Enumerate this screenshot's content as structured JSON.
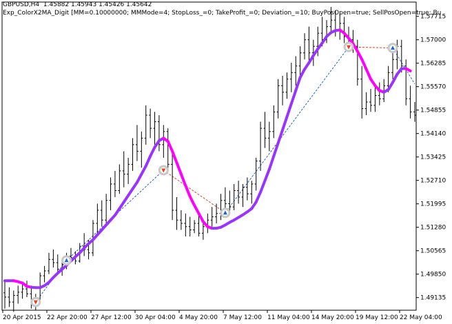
{
  "header": {
    "symbol": "GBPUSD,H4",
    "ohlc": "1.45882 1.45943 1.45426 1.45642",
    "expert": "Exp_ColorX2MA_Digit [MM=0.10000000; MMMode=4; StopLoss_=0; TakeProfit_=0; Deviation_=10; BuyPosOpen=true; SellPosOpen=true; Bu"
  },
  "colors": {
    "background": "#ffffff",
    "bars": "#000000",
    "ma_up": "#9933ff",
    "ma_down": "#ff00ff",
    "buy_marker": "#1e66d8",
    "sell_marker": "#e8401c",
    "buy_line": "#1e66d8",
    "sell_line": "#e8401c",
    "marker_ring": "#c8c8c8"
  },
  "chart_data": {
    "type": "line",
    "title": "",
    "xlabel": "",
    "ylabel": "",
    "ylim": [
      1.4875,
      1.5815
    ],
    "grid": false,
    "y_ticks": [
      "1.57715",
      "1.57000",
      "1.56285",
      "1.55570",
      "1.54855",
      "1.54140",
      "1.53425",
      "1.52710",
      "1.51995",
      "1.51280",
      "1.50565",
      "1.49850",
      "1.49135"
    ],
    "x_ticks": [
      "20 Apr 2015",
      "22 Apr 20:00",
      "27 Apr 12:00",
      "30 Apr 04:00",
      "4 May 20:00",
      "7 May 12:00",
      "11 May 04:00",
      "14 May 20:00",
      "19 May 12:00",
      "22 May 04:00"
    ],
    "ma_series": {
      "name": "",
      "values": [
        1.4965,
        1.4965,
        1.4965,
        1.4962,
        1.4958,
        1.4948,
        1.4945,
        1.4944,
        1.4944,
        1.495,
        1.496,
        1.4975,
        1.4988,
        1.5,
        1.5012,
        1.5025,
        1.5038,
        1.505,
        1.5065,
        1.5078,
        1.509,
        1.5105,
        1.512,
        1.5135,
        1.515,
        1.5165,
        1.5185,
        1.5205,
        1.5225,
        1.5245,
        1.5265,
        1.529,
        1.5315,
        1.5345,
        1.5372,
        1.5392,
        1.54,
        1.539,
        1.536,
        1.5325,
        1.529,
        1.5255,
        1.5222,
        1.5195,
        1.517,
        1.5145,
        1.513,
        1.5125,
        1.5125,
        1.5128,
        1.5135,
        1.5143,
        1.515,
        1.5158,
        1.5166,
        1.5175,
        1.5185,
        1.5205,
        1.5235,
        1.527,
        1.5305,
        1.5345,
        1.5385,
        1.5425,
        1.5465,
        1.5505,
        1.5545,
        1.5585,
        1.561,
        1.563,
        1.5652,
        1.5672,
        1.569,
        1.571,
        1.5722,
        1.5728,
        1.573,
        1.572,
        1.5705,
        1.5688,
        1.5665,
        1.564,
        1.561,
        1.558,
        1.556,
        1.5545,
        1.554,
        1.5548,
        1.557,
        1.5595,
        1.5612,
        1.5612,
        1.5605
      ],
      "colors": [
        "up",
        "up",
        "up",
        "down",
        "down",
        "down",
        "down",
        "up",
        "up",
        "up",
        "up",
        "up",
        "up",
        "up",
        "up",
        "up",
        "up",
        "up",
        "up",
        "up",
        "up",
        "up",
        "up",
        "up",
        "up",
        "up",
        "up",
        "up",
        "up",
        "up",
        "up",
        "up",
        "up",
        "up",
        "up",
        "up",
        "up",
        "down",
        "down",
        "down",
        "down",
        "down",
        "down",
        "down",
        "down",
        "down",
        "down",
        "down",
        "up",
        "up",
        "up",
        "up",
        "up",
        "up",
        "up",
        "up",
        "up",
        "up",
        "up",
        "up",
        "up",
        "up",
        "up",
        "up",
        "up",
        "up",
        "up",
        "up",
        "up",
        "up",
        "up",
        "up",
        "up",
        "up",
        "up",
        "up",
        "up",
        "down",
        "down",
        "down",
        "down",
        "down",
        "down",
        "down",
        "down",
        "down",
        "down",
        "up",
        "up",
        "up",
        "up",
        "up",
        "down"
      ]
    },
    "candles": [
      [
        1.4928,
        1.4962,
        1.488,
        1.4915
      ],
      [
        1.4915,
        1.4945,
        1.4885,
        1.49
      ],
      [
        1.49,
        1.4935,
        1.487,
        1.492
      ],
      [
        1.492,
        1.495,
        1.4895,
        1.493
      ],
      [
        1.493,
        1.496,
        1.491,
        1.494
      ],
      [
        1.494,
        1.4965,
        1.4915,
        1.4925
      ],
      [
        1.4925,
        1.495,
        1.488,
        1.489
      ],
      [
        1.489,
        1.4925,
        1.4875,
        1.491
      ],
      [
        1.491,
        1.499,
        1.49,
        1.498
      ],
      [
        1.498,
        1.501,
        1.496,
        1.4995
      ],
      [
        1.4995,
        1.505,
        1.4985,
        1.503
      ],
      [
        1.503,
        1.506,
        1.5005,
        1.502
      ],
      [
        1.502,
        1.5045,
        1.499,
        1.5
      ],
      [
        1.5,
        1.503,
        1.498,
        1.5015
      ],
      [
        1.5015,
        1.505,
        1.5,
        1.504
      ],
      [
        1.504,
        1.5065,
        1.502,
        1.5035
      ],
      [
        1.5035,
        1.5055,
        1.5015,
        1.5025
      ],
      [
        1.5025,
        1.508,
        1.502,
        1.507
      ],
      [
        1.507,
        1.511,
        1.504,
        1.506
      ],
      [
        1.506,
        1.509,
        1.503,
        1.505
      ],
      [
        1.505,
        1.515,
        1.504,
        1.514
      ],
      [
        1.514,
        1.52,
        1.511,
        1.518
      ],
      [
        1.518,
        1.521,
        1.513,
        1.515
      ],
      [
        1.515,
        1.523,
        1.514,
        1.521
      ],
      [
        1.521,
        1.528,
        1.518,
        1.526
      ],
      [
        1.526,
        1.53,
        1.522,
        1.524
      ],
      [
        1.524,
        1.532,
        1.523,
        1.53
      ],
      [
        1.53,
        1.536,
        1.525,
        1.529
      ],
      [
        1.529,
        1.534,
        1.526,
        1.532
      ],
      [
        1.532,
        1.54,
        1.53,
        1.538
      ],
      [
        1.538,
        1.544,
        1.533,
        1.536
      ],
      [
        1.536,
        1.542,
        1.531,
        1.54
      ],
      [
        1.54,
        1.55,
        1.538,
        1.547
      ],
      [
        1.547,
        1.549,
        1.54,
        1.543
      ],
      [
        1.543,
        1.548,
        1.538,
        1.545
      ],
      [
        1.545,
        1.547,
        1.536,
        1.538
      ],
      [
        1.538,
        1.544,
        1.534,
        1.542
      ],
      [
        1.542,
        1.543,
        1.53,
        1.532
      ],
      [
        1.532,
        1.536,
        1.515,
        1.518
      ],
      [
        1.518,
        1.522,
        1.512,
        1.515
      ],
      [
        1.515,
        1.518,
        1.512,
        1.514
      ],
      [
        1.514,
        1.517,
        1.51,
        1.513
      ],
      [
        1.513,
        1.516,
        1.51,
        1.512
      ],
      [
        1.512,
        1.515,
        1.511,
        1.514
      ],
      [
        1.514,
        1.517,
        1.51,
        1.511
      ],
      [
        1.511,
        1.515,
        1.509,
        1.513
      ],
      [
        1.513,
        1.517,
        1.511,
        1.515
      ],
      [
        1.515,
        1.519,
        1.513,
        1.516
      ],
      [
        1.516,
        1.52,
        1.514,
        1.517
      ],
      [
        1.517,
        1.523,
        1.515,
        1.521
      ],
      [
        1.521,
        1.525,
        1.518,
        1.52
      ],
      [
        1.52,
        1.524,
        1.517,
        1.519
      ],
      [
        1.519,
        1.526,
        1.518,
        1.524
      ],
      [
        1.524,
        1.527,
        1.52,
        1.522
      ],
      [
        1.522,
        1.526,
        1.519,
        1.525
      ],
      [
        1.525,
        1.528,
        1.521,
        1.523
      ],
      [
        1.523,
        1.527,
        1.52,
        1.526
      ],
      [
        1.526,
        1.534,
        1.524,
        1.533
      ],
      [
        1.533,
        1.545,
        1.53,
        1.543
      ],
      [
        1.543,
        1.548,
        1.537,
        1.54
      ],
      [
        1.54,
        1.545,
        1.536,
        1.542
      ],
      [
        1.542,
        1.55,
        1.54,
        1.548
      ],
      [
        1.548,
        1.558,
        1.546,
        1.556
      ],
      [
        1.556,
        1.559,
        1.55,
        1.554
      ],
      [
        1.554,
        1.56,
        1.552,
        1.558
      ],
      [
        1.558,
        1.563,
        1.554,
        1.56
      ],
      [
        1.56,
        1.565,
        1.556,
        1.562
      ],
      [
        1.562,
        1.568,
        1.558,
        1.566
      ],
      [
        1.566,
        1.572,
        1.564,
        1.57
      ],
      [
        1.57,
        1.574,
        1.563,
        1.566
      ],
      [
        1.566,
        1.57,
        1.562,
        1.568
      ],
      [
        1.568,
        1.574,
        1.565,
        1.572
      ],
      [
        1.572,
        1.577,
        1.568,
        1.57
      ],
      [
        1.57,
        1.576,
        1.569,
        1.574
      ],
      [
        1.574,
        1.58,
        1.572,
        1.576
      ],
      [
        1.576,
        1.579,
        1.571,
        1.573
      ],
      [
        1.573,
        1.578,
        1.57,
        1.575
      ],
      [
        1.575,
        1.577,
        1.569,
        1.571
      ],
      [
        1.571,
        1.574,
        1.568,
        1.57
      ],
      [
        1.57,
        1.573,
        1.566,
        1.568
      ],
      [
        1.568,
        1.57,
        1.556,
        1.558
      ],
      [
        1.558,
        1.562,
        1.546,
        1.549
      ],
      [
        1.549,
        1.554,
        1.547,
        1.551
      ],
      [
        1.551,
        1.555,
        1.548,
        1.55
      ],
      [
        1.55,
        1.556,
        1.548,
        1.553
      ],
      [
        1.553,
        1.557,
        1.55,
        1.552
      ],
      [
        1.552,
        1.558,
        1.551,
        1.556
      ],
      [
        1.556,
        1.562,
        1.554,
        1.56
      ],
      [
        1.56,
        1.566,
        1.558,
        1.564
      ],
      [
        1.564,
        1.57,
        1.561,
        1.568
      ],
      [
        1.568,
        1.57,
        1.56,
        1.562
      ],
      [
        1.562,
        1.564,
        1.55,
        1.552
      ],
      [
        1.552,
        1.556,
        1.546,
        1.548
      ],
      [
        1.548,
        1.551,
        1.545,
        1.547
      ]
    ],
    "trades": [
      {
        "bar": 7,
        "price": 1.49,
        "side": "sell"
      },
      {
        "bar": 14,
        "price": 1.5027,
        "side": "buy"
      },
      {
        "bar": 50,
        "price": 1.5172,
        "side": "buy"
      },
      {
        "bar": 36,
        "price": 1.5302,
        "side": "sell"
      },
      {
        "bar": 78,
        "price": 1.5678,
        "side": "sell"
      },
      {
        "bar": 88,
        "price": 1.5675,
        "side": "buy"
      }
    ],
    "trade_lines": [
      {
        "from_bar": 7,
        "from_price": 1.49,
        "to_bar": 14,
        "to_price": 1.5027,
        "side": "buy"
      },
      {
        "from_bar": 14,
        "from_price": 1.5027,
        "to_bar": 36,
        "to_price": 1.5302,
        "side": "buy"
      },
      {
        "from_bar": 36,
        "from_price": 1.5302,
        "to_bar": 50,
        "to_price": 1.5172,
        "side": "sell"
      },
      {
        "from_bar": 50,
        "from_price": 1.5172,
        "to_bar": 78,
        "to_price": 1.5678,
        "side": "buy"
      },
      {
        "from_bar": 78,
        "from_price": 1.5678,
        "to_bar": 88,
        "to_price": 1.5675,
        "side": "sell"
      },
      {
        "from_bar": 88,
        "from_price": 1.5675,
        "to_bar": 93,
        "to_price": 1.5565,
        "side": "buy"
      }
    ]
  }
}
